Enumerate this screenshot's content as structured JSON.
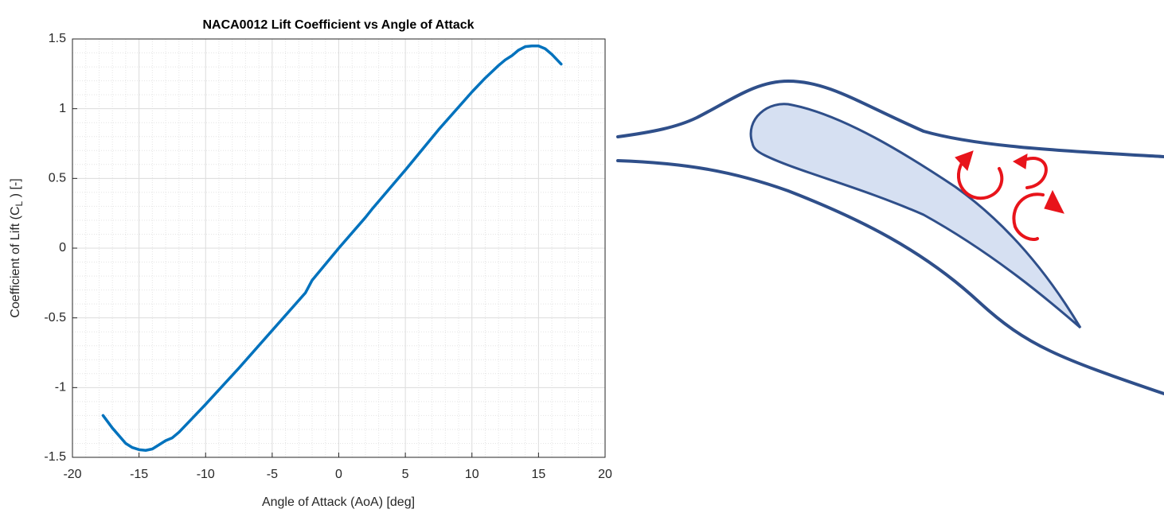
{
  "chart_data": {
    "type": "line",
    "title": "NACA0012 Lift Coefficient vs Angle of Attack",
    "xlabel": "Angle of Attack (AoA) [deg]",
    "ylabel": [
      "Coefficient of Lift (C",
      "L",
      " ) [-]"
    ],
    "x": [
      -17.7,
      -17,
      -16,
      -15.5,
      -15,
      -14.5,
      -14,
      -13.5,
      -13,
      -12.5,
      -12,
      -11,
      -10,
      -7.5,
      -5,
      -2.5,
      -2,
      0,
      2,
      2.5,
      5,
      7.5,
      10,
      11,
      12,
      12.5,
      13,
      13.5,
      14,
      14.5,
      15,
      15.5,
      16,
      16.7
    ],
    "values": [
      -1.2,
      -1.29,
      -1.4,
      -1.43,
      -1.445,
      -1.45,
      -1.44,
      -1.41,
      -1.38,
      -1.36,
      -1.32,
      -1.22,
      -1.12,
      -0.86,
      -0.59,
      -0.32,
      -0.23,
      0.0,
      0.22,
      0.28,
      0.56,
      0.85,
      1.12,
      1.22,
      1.31,
      1.35,
      1.38,
      1.42,
      1.445,
      1.45,
      1.45,
      1.43,
      1.39,
      1.32
    ],
    "color": "#0072BD",
    "xlim": [
      -20,
      20
    ],
    "xticks": [
      -20,
      -15,
      -10,
      -5,
      0,
      5,
      10,
      15,
      20
    ],
    "ylim": [
      -1.5,
      1.5
    ],
    "yticks": [
      -1.5,
      -1,
      -0.5,
      0,
      0.5,
      1,
      1.5
    ],
    "grid": true,
    "minor_grid": true
  }
}
